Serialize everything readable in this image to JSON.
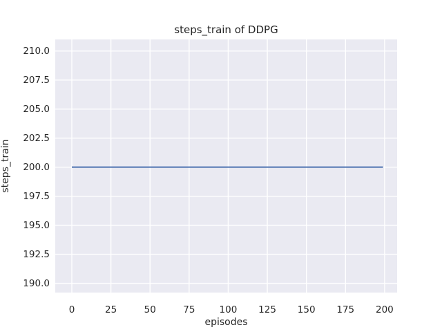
{
  "chart_data": {
    "type": "line",
    "title": "steps_train of DDPG",
    "xlabel": "episodes",
    "ylabel": "steps_train",
    "xlim": [
      -10.6,
      208.0
    ],
    "ylim": [
      189.2,
      211.0
    ],
    "xticks": [
      0,
      25,
      50,
      75,
      100,
      125,
      150,
      175,
      200
    ],
    "xticklabels": [
      "0",
      "25",
      "50",
      "75",
      "100",
      "125",
      "150",
      "175",
      "200"
    ],
    "yticks": [
      190.0,
      192.5,
      195.0,
      197.5,
      200.0,
      202.5,
      205.0,
      207.5,
      210.0
    ],
    "yticklabels": [
      "190.0",
      "192.5",
      "195.0",
      "197.5",
      "200.0",
      "202.5",
      "205.0",
      "207.5",
      "210.0"
    ],
    "grid": true,
    "legend": "none",
    "series": [
      {
        "name": "steps_train",
        "x": [
          0,
          199
        ],
        "y": [
          200,
          200
        ],
        "note": "constant value 200 for every episode 0-199"
      }
    ],
    "style": {
      "figure_bg": "#ffffff",
      "plot_bg": "#eaeaf2",
      "grid_color": "#ffffff",
      "line_color": "#4c72b0",
      "text_color": "#262626"
    }
  }
}
